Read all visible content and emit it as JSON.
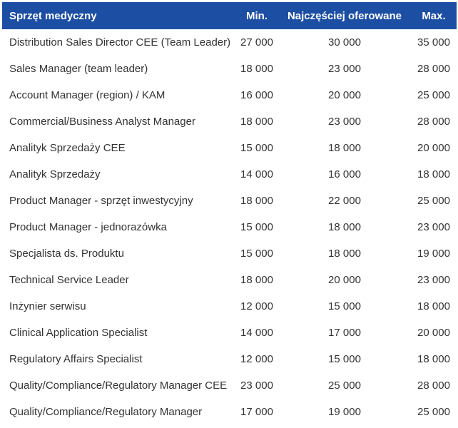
{
  "table": {
    "header": [
      "Sprzęt medyczny",
      "Min.",
      "Najczęściej oferowane",
      "Max."
    ],
    "rows": [
      [
        "Distribution Sales Director CEE (Team Leader)",
        "27 000",
        "30 000",
        "35 000"
      ],
      [
        "Sales Manager (team leader)",
        "18 000",
        "23 000",
        "28 000"
      ],
      [
        "Account Manager (region) / KAM",
        "16 000",
        "20 000",
        "25 000"
      ],
      [
        "Commercial/Business Analyst Manager",
        "18 000",
        "23 000",
        "28 000"
      ],
      [
        "Analityk Sprzedaży CEE",
        "15 000",
        "18 000",
        "20 000"
      ],
      [
        "Analityk Sprzedaży",
        "14 000",
        "16 000",
        "18 000"
      ],
      [
        "Product Manager - sprzęt inwestycyjny",
        "18 000",
        "22 000",
        "25 000"
      ],
      [
        "Product Manager - jednorazówka",
        "15 000",
        "18 000",
        "23 000"
      ],
      [
        "Specjalista ds. Produktu",
        "15 000",
        "18 000",
        "19 000"
      ],
      [
        "Technical Service Leader",
        "18 000",
        "20 000",
        "23 000"
      ],
      [
        "Inżynier serwisu",
        "12 000",
        "15 000",
        "18 000"
      ],
      [
        "Clinical Application Specialist",
        "14 000",
        "17 000",
        "20 000"
      ],
      [
        "Regulatory Affairs Specialist",
        "12 000",
        "15 000",
        "18 000"
      ],
      [
        "Quality/Compliance/Regulatory Manager CEE",
        "23 000",
        "25 000",
        "28 000"
      ],
      [
        "Quality/Compliance/Regulatory Manager",
        "17 000",
        "19 000",
        "25 000"
      ]
    ]
  }
}
